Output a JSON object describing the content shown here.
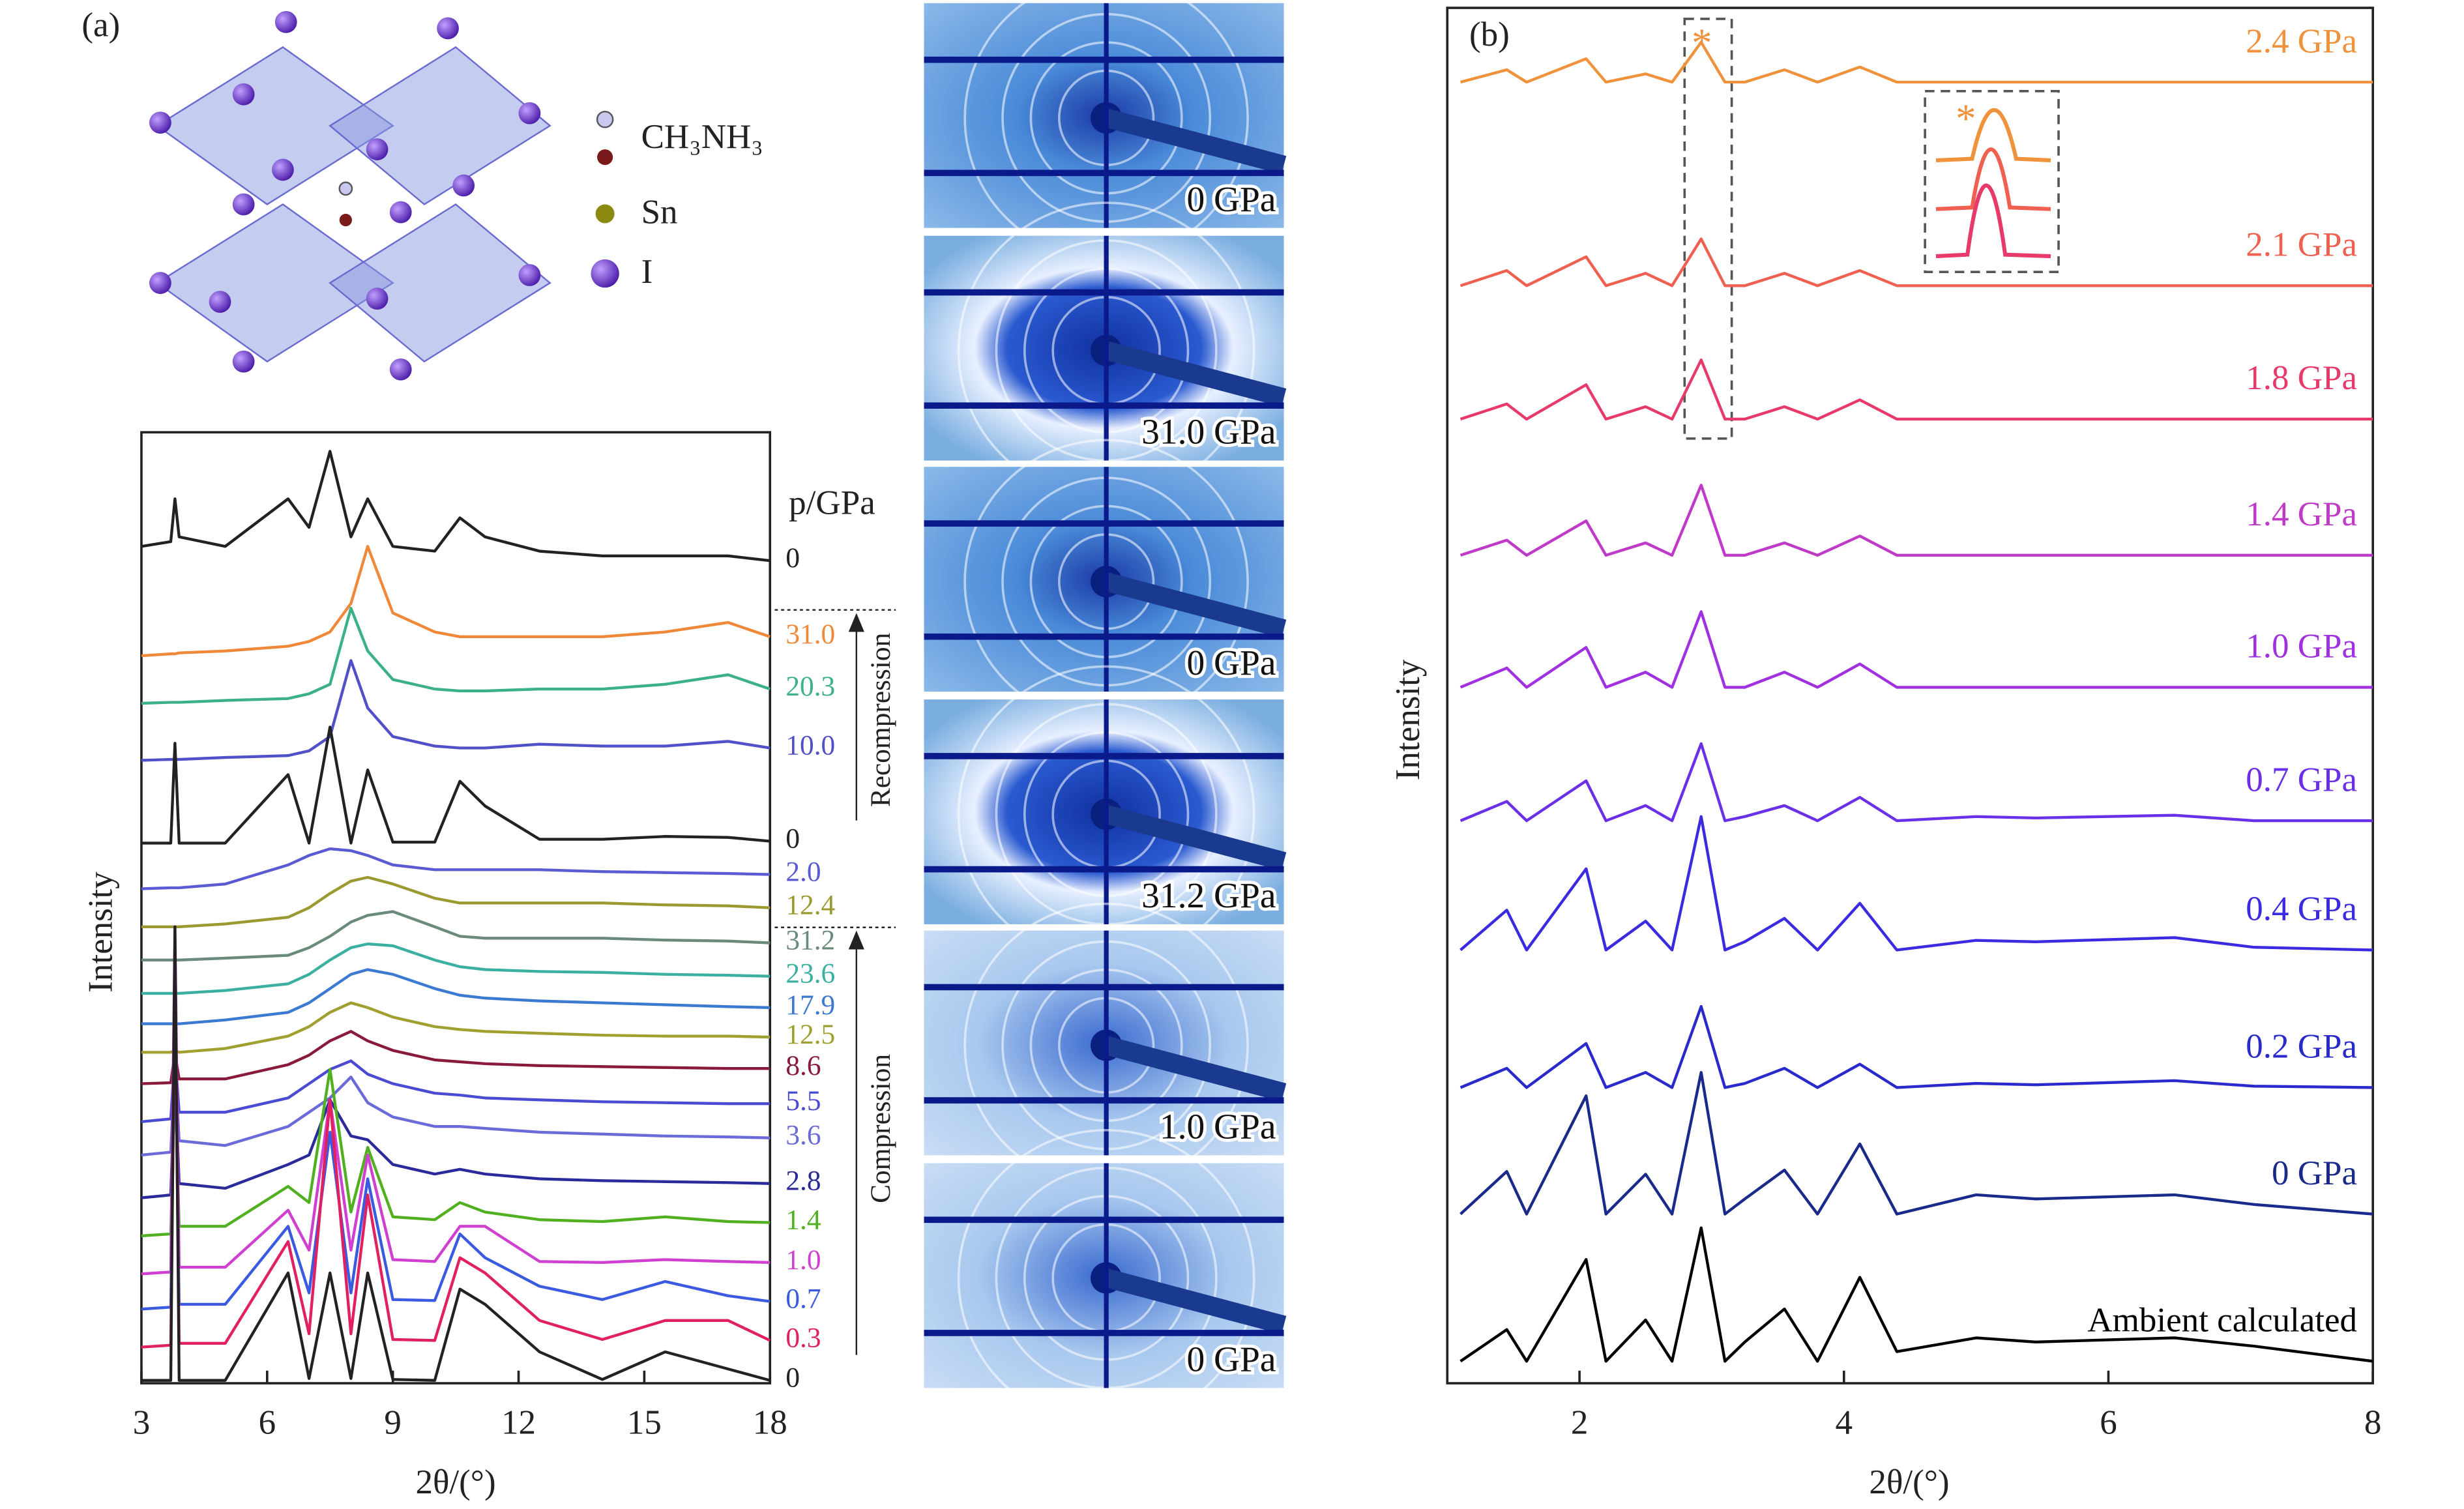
{
  "chart_data": [
    {
      "type": "line",
      "panel_label": "(a)",
      "x_label": "2θ/(°)",
      "y_label": "Intensity",
      "annotations": [
        "p/GPa",
        "Recompression",
        "Compression"
      ],
      "xlim": [
        3,
        18
      ],
      "xticks": [
        3,
        6,
        9,
        12,
        15,
        18
      ],
      "ylim": [
        0,
        100
      ],
      "x": [
        3,
        3.7,
        3.8,
        3.9,
        5,
        6.5,
        7,
        7.5,
        8,
        8.4,
        9,
        10,
        10.6,
        11.2,
        12.5,
        14,
        15.5,
        17,
        18
      ],
      "series": [
        {
          "name": "0",
          "color": "#222222",
          "values": [
            88,
            88.5,
            93,
            89,
            88,
            93,
            90,
            98,
            89,
            93,
            88,
            87.5,
            91,
            89,
            87.5,
            87,
            87,
            87,
            86.5
          ]
        },
        {
          "name": "31.0",
          "color": "#f0883a",
          "values": [
            76.5,
            76.7,
            76.7,
            76.8,
            77,
            77.5,
            78,
            79,
            82,
            88,
            81,
            79,
            78.5,
            78.5,
            78.5,
            78.5,
            79,
            80,
            78.5
          ]
        },
        {
          "name": "20.3",
          "color": "#3cb08a",
          "values": [
            71.5,
            71.6,
            71.6,
            71.6,
            71.8,
            72,
            72.5,
            73.5,
            81.5,
            77,
            74,
            73,
            72.8,
            72.8,
            73,
            73,
            73.5,
            74.5,
            73
          ]
        },
        {
          "name": "10.0",
          "color": "#5050c8",
          "values": [
            65.5,
            65.6,
            65.6,
            65.6,
            65.8,
            66,
            66.5,
            68,
            76,
            71,
            68,
            67,
            66.8,
            66.8,
            67.2,
            67,
            67,
            67.5,
            66.8
          ]
        },
        {
          "name": "0",
          "color": "#222222",
          "values": [
            56.8,
            56.8,
            67.3,
            56.8,
            56.8,
            64,
            56.8,
            69,
            56.8,
            64.5,
            56.9,
            56.9,
            63.3,
            60.7,
            57.2,
            57.2,
            57.5,
            57.4,
            57
          ]
        },
        {
          "name": "2.0",
          "color": "#5a5ad2",
          "values": [
            52,
            52.1,
            52.1,
            52.1,
            52.5,
            54.5,
            55.5,
            56.2,
            56,
            55.5,
            54.5,
            54,
            54,
            54,
            54,
            53.8,
            53.7,
            53.6,
            53.5
          ]
        },
        {
          "name": "12.4",
          "color": "#9a9a30",
          "values": [
            48,
            48,
            48,
            48,
            48.3,
            49,
            50,
            51.5,
            52.8,
            53.2,
            52.5,
            51,
            50.5,
            50.5,
            50.5,
            50.5,
            50.3,
            50.2,
            50
          ]
        },
        {
          "name": "31.2",
          "color": "#6a8a7a",
          "values": [
            44.5,
            44.5,
            44.5,
            44.5,
            44.7,
            45,
            45.8,
            47,
            48.5,
            49.2,
            49.6,
            48,
            47,
            46.8,
            46.8,
            46.8,
            46.6,
            46.5,
            46.3
          ]
        },
        {
          "name": "23.6",
          "color": "#3cb0a0",
          "values": [
            41,
            41,
            41,
            41,
            41.3,
            42,
            43,
            44.5,
            45.8,
            46.2,
            46,
            44.5,
            43.8,
            43.5,
            43.3,
            43.2,
            43,
            42.9,
            42.8
          ]
        },
        {
          "name": "17.9",
          "color": "#3c7ad2",
          "values": [
            37.8,
            37.8,
            37.8,
            37.8,
            38.2,
            39,
            40,
            41.5,
            43,
            43.5,
            43,
            41.5,
            40.8,
            40.5,
            40.2,
            40,
            39.8,
            39.6,
            39.5
          ]
        },
        {
          "name": "12.5",
          "color": "#a0a030",
          "values": [
            34.8,
            34.8,
            35,
            34.8,
            35.2,
            36.5,
            37.5,
            39,
            40,
            39.5,
            38.5,
            37.5,
            37.2,
            37,
            36.8,
            36.6,
            36.5,
            36.5,
            36.4
          ]
        },
        {
          "name": "8.6",
          "color": "#8a1a3a",
          "values": [
            31.5,
            31.6,
            34.7,
            32,
            32,
            33.5,
            34.5,
            36,
            37,
            36,
            35,
            34,
            33.8,
            33.6,
            33.4,
            33.3,
            33.2,
            33.1,
            33.1
          ]
        },
        {
          "name": "5.5",
          "color": "#4a4ad2",
          "values": [
            27.5,
            27.8,
            34.7,
            28.5,
            28.5,
            30,
            31.5,
            33,
            33.9,
            32.5,
            31.5,
            30.5,
            30.3,
            30,
            29.8,
            29.6,
            29.5,
            29.4,
            29.4
          ]
        },
        {
          "name": "3.6",
          "color": "#6a6ad8",
          "values": [
            24,
            24.3,
            33.9,
            25.5,
            25,
            27,
            28.5,
            30,
            32.2,
            29.5,
            28,
            27,
            27,
            26.8,
            26.4,
            26.2,
            26,
            25.9,
            25.8
          ]
        },
        {
          "name": "2.8",
          "color": "#2a2a9a",
          "values": [
            19.5,
            19.8,
            33.1,
            21,
            20.5,
            23,
            24,
            29.8,
            26,
            25.6,
            23,
            22,
            22.5,
            22,
            21.5,
            21.3,
            21.2,
            21.1,
            21
          ]
        },
        {
          "name": "1.4",
          "color": "#50b020",
          "values": [
            15.5,
            15.7,
            33,
            16.5,
            16.5,
            20.7,
            19,
            33,
            18,
            24.8,
            17.5,
            17.2,
            19,
            18,
            17.2,
            17,
            17.5,
            17,
            16.9
          ]
        },
        {
          "name": "1.0",
          "color": "#d040d0",
          "values": [
            11.5,
            11.7,
            48,
            12.2,
            12.2,
            18.2,
            14,
            29.8,
            14,
            24,
            13,
            12.8,
            16.5,
            16.5,
            12.8,
            12.7,
            13,
            12.8,
            12.7
          ]
        },
        {
          "name": "0.7",
          "color": "#3a5ae0",
          "values": [
            7.8,
            8,
            38,
            8.3,
            8.3,
            16.5,
            9.5,
            26.4,
            9.5,
            21.5,
            8.8,
            8.7,
            15.7,
            13.2,
            10.2,
            8.8,
            10.7,
            9.2,
            8.6
          ]
        },
        {
          "name": "0.3",
          "color": "#e02060",
          "values": [
            3.8,
            4,
            43,
            4.2,
            4.2,
            14.9,
            5.2,
            29.8,
            5.2,
            19.8,
            4.6,
            4.5,
            13.2,
            11.6,
            6.6,
            4.6,
            6.6,
            6.6,
            4.5
          ]
        },
        {
          "name": "0",
          "color": "#222222",
          "values": [
            0.3,
            0.3,
            48,
            0.3,
            0.3,
            11.6,
            0.5,
            11.6,
            0.5,
            11.6,
            0.4,
            0.3,
            9.9,
            8.3,
            3.3,
            0.4,
            3.3,
            1.5,
            0.3
          ]
        }
      ]
    },
    {
      "type": "line",
      "panel_label": "(b)",
      "x_label": "2θ/(°)",
      "y_label": "Intensity",
      "annotations": [
        "*",
        "*"
      ],
      "xlim": [
        1,
        8
      ],
      "xticks": [
        2,
        4,
        6,
        8
      ],
      "ylim": [
        0,
        100
      ],
      "x": [
        1.1,
        1.45,
        1.6,
        2.05,
        2.2,
        2.5,
        2.7,
        2.92,
        3.1,
        3.25,
        3.55,
        3.8,
        4.12,
        4.4,
        5.0,
        5.45,
        6.5,
        7.1,
        8
      ],
      "series": [
        {
          "name": "2.4 GPa",
          "color": "#f0923c",
          "values": [
            94.6,
            95.5,
            94.6,
            96.3,
            94.6,
            95.2,
            94.6,
            97.5,
            94.6,
            94.6,
            95.5,
            94.6,
            95.7,
            94.6,
            94.6,
            94.6,
            94.6,
            94.6,
            94.6
          ]
        },
        {
          "name": "2.1 GPa",
          "color": "#f06050",
          "values": [
            79.8,
            80.9,
            79.8,
            81.9,
            79.8,
            80.7,
            79.8,
            83.2,
            79.8,
            79.8,
            80.7,
            79.8,
            80.9,
            79.8,
            79.8,
            79.8,
            79.8,
            79.8,
            79.8
          ]
        },
        {
          "name": "1.8 GPa",
          "color": "#e83a6a",
          "values": [
            70.1,
            71.2,
            70.1,
            72.6,
            70.1,
            71.0,
            70.1,
            74.4,
            70.1,
            70.1,
            71.0,
            70.1,
            71.5,
            70.1,
            70.1,
            70.1,
            70.1,
            70.1,
            70.1
          ]
        },
        {
          "name": "1.4 GPa",
          "color": "#c03ac8",
          "values": [
            60.2,
            61.3,
            60.2,
            62.7,
            60.2,
            61.1,
            60.2,
            65.3,
            60.2,
            60.2,
            61.1,
            60.2,
            61.6,
            60.2,
            60.2,
            60.2,
            60.2,
            60.2,
            60.2
          ]
        },
        {
          "name": "1.0 GPa",
          "color": "#a030e0",
          "values": [
            50.6,
            52.0,
            50.6,
            53.5,
            50.6,
            51.7,
            50.6,
            56.1,
            50.6,
            50.6,
            51.7,
            50.6,
            52.3,
            50.6,
            50.6,
            50.6,
            50.6,
            50.6,
            50.6
          ]
        },
        {
          "name": "0.7 GPa",
          "color": "#6a30e8",
          "values": [
            40.9,
            42.3,
            40.9,
            43.8,
            40.9,
            42.0,
            40.9,
            46.5,
            40.9,
            41.2,
            42.0,
            40.9,
            42.6,
            40.9,
            41.2,
            41.1,
            41.3,
            40.9,
            40.9
          ]
        },
        {
          "name": "0.4 GPa",
          "color": "#3a2ae0",
          "values": [
            31.5,
            34.4,
            31.5,
            37.4,
            31.5,
            33.6,
            31.5,
            41.2,
            31.5,
            32.1,
            33.8,
            31.5,
            34.9,
            31.5,
            32.2,
            32.1,
            32.4,
            31.7,
            31.5
          ]
        },
        {
          "name": "0.2 GPa",
          "color": "#2a2acc",
          "values": [
            21.5,
            22.9,
            21.5,
            24.7,
            21.5,
            22.6,
            21.5,
            27.4,
            21.5,
            21.8,
            22.9,
            21.5,
            23.2,
            21.5,
            21.8,
            21.7,
            22.0,
            21.6,
            21.5
          ]
        },
        {
          "name": "0 GPa",
          "color": "#1a2a8a",
          "values": [
            12.3,
            15.4,
            12.3,
            20.9,
            12.3,
            15.2,
            12.3,
            22.6,
            12.3,
            13.4,
            15.5,
            12.3,
            17.4,
            12.3,
            13.7,
            13.4,
            13.7,
            13.0,
            12.3
          ]
        },
        {
          "name": "Ambient calculated",
          "color": "#000000",
          "values": [
            1.6,
            3.9,
            1.6,
            9.0,
            1.6,
            4.6,
            1.6,
            11.3,
            1.6,
            3.0,
            5.4,
            1.6,
            7.7,
            2.3,
            3.3,
            3.0,
            3.3,
            2.7,
            1.6
          ]
        }
      ]
    }
  ],
  "structure": {
    "legend": [
      "CH₃NH₃",
      "Sn",
      "I"
    ]
  },
  "diffraction_images": {
    "labels": [
      "0 GPa",
      "31.0 GPa",
      "0 GPa",
      "31.2 GPa",
      "1.0 GPa",
      "0 GPa"
    ]
  }
}
